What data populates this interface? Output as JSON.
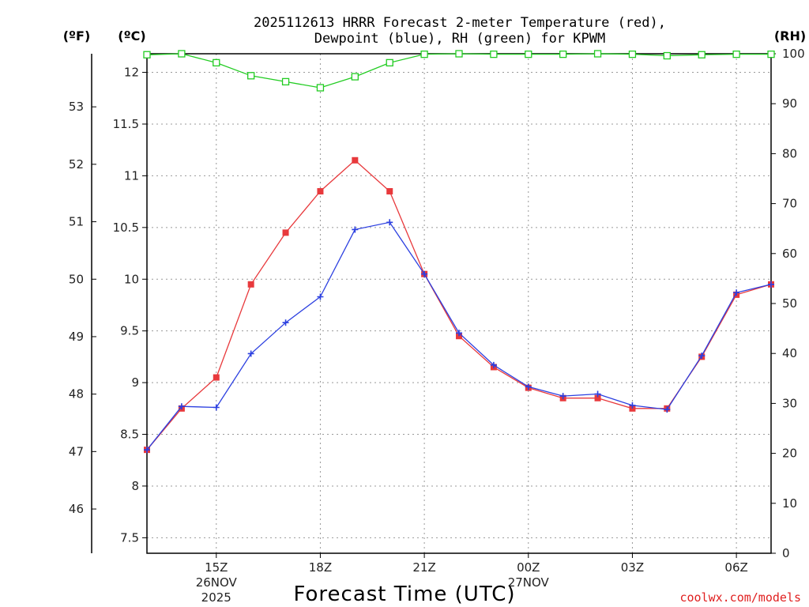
{
  "chart_data": {
    "type": "line",
    "title_line1": "2025112613 HRRR Forecast 2-meter Temperature (red),",
    "title_line2": "Dewpoint (blue), RH (green) for KPWM",
    "xlabel": "Forecast Time (UTC)",
    "credit": "coolwx.com/models",
    "unit_f": "(ºF)",
    "unit_c": "(ºC)",
    "unit_rh": "(RH)",
    "x": [
      13,
      14,
      15,
      16,
      17,
      18,
      19,
      20,
      21,
      22,
      23,
      24,
      25,
      26,
      27,
      28,
      29,
      30,
      31
    ],
    "x_range": [
      13,
      31
    ],
    "x_ticks": [
      {
        "x": 15,
        "label": "15Z",
        "date1": "26NOV",
        "date2": "2025"
      },
      {
        "x": 18,
        "label": "18Z",
        "date1": "",
        "date2": ""
      },
      {
        "x": 21,
        "label": "21Z",
        "date1": "",
        "date2": ""
      },
      {
        "x": 24,
        "label": "00Z",
        "date1": "27NOV",
        "date2": ""
      },
      {
        "x": 27,
        "label": "03Z",
        "date1": "",
        "date2": ""
      },
      {
        "x": 30,
        "label": "06Z",
        "date1": "",
        "date2": ""
      }
    ],
    "c_range": [
      7.35,
      12.18
    ],
    "c_ticks": [
      7.5,
      8,
      8.5,
      9,
      9.5,
      10,
      10.5,
      11,
      11.5,
      12
    ],
    "c_tick_labels": [
      "7.5",
      "8",
      "8.5",
      "9",
      "9.5",
      "10",
      "10.5",
      "11",
      "11.5",
      "12"
    ],
    "f_ticks": [
      46,
      47,
      48,
      49,
      50,
      51,
      52,
      53
    ],
    "f_tick_labels": [
      "46",
      "47",
      "48",
      "49",
      "50",
      "51",
      "52",
      "53"
    ],
    "rh_range": [
      0,
      100
    ],
    "rh_ticks": [
      0,
      10,
      20,
      30,
      40,
      50,
      60,
      70,
      80,
      90,
      100
    ],
    "rh_tick_labels": [
      "0",
      "10",
      "20",
      "30",
      "40",
      "50",
      "60",
      "70",
      "80",
      "90",
      "100"
    ],
    "series": [
      {
        "name": "Temperature",
        "color": "#e8393c",
        "marker": "filled-square",
        "values": [
          8.35,
          8.75,
          9.05,
          9.95,
          10.45,
          10.85,
          11.15,
          10.85,
          10.05,
          9.45,
          9.15,
          8.95,
          8.85,
          8.85,
          8.75,
          8.75,
          9.25,
          9.85,
          9.95
        ]
      },
      {
        "name": "Dewpoint",
        "color": "#2b3fe0",
        "marker": "plus",
        "values": [
          8.35,
          8.77,
          8.76,
          9.28,
          9.58,
          9.83,
          10.48,
          10.55,
          10.05,
          9.48,
          9.17,
          8.96,
          8.87,
          8.89,
          8.78,
          8.74,
          9.26,
          9.87,
          9.95
        ]
      },
      {
        "name": "RH",
        "color": "#22cc22",
        "marker": "open-square",
        "axis": "rh",
        "values": [
          99.8,
          100,
          98.2,
          95.6,
          94.4,
          93.2,
          95.4,
          98.2,
          99.9,
          100,
          99.9,
          99.9,
          99.9,
          100,
          99.9,
          99.6,
          99.8,
          99.9,
          99.9
        ]
      }
    ]
  }
}
